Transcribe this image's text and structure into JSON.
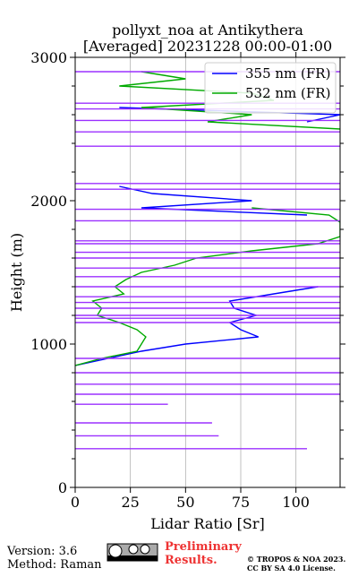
{
  "chart_data": {
    "type": "line",
    "title": [
      "pollyxt_noa at Antikythera",
      "[Averaged] 20231228 00:00-01:00"
    ],
    "xlabel": "Lidar Ratio [Sr]",
    "ylabel": "Height (m)",
    "xlim": [
      0,
      120
    ],
    "ylim": [
      0,
      3000
    ],
    "xticks": [
      0,
      25,
      50,
      75,
      100
    ],
    "yticks": [
      0,
      1000,
      2000,
      3000
    ],
    "yminorticks": [
      200,
      400,
      600,
      800,
      1200,
      1400,
      1600,
      1800,
      2200,
      2400,
      2600,
      2800
    ],
    "grid": true,
    "legend": "upper right",
    "y": [
      850,
      900,
      950,
      1000,
      1050,
      1100,
      1150,
      1200,
      1250,
      1300,
      1350,
      1400,
      1450,
      1500,
      1550,
      1600,
      1650,
      1700,
      1750,
      1800,
      1850,
      1900,
      1950,
      2000,
      2050,
      2100,
      2150,
      2200,
      2250,
      2300,
      2350,
      2400,
      2450,
      2500,
      2550,
      2600,
      2650,
      2700,
      2750,
      2800,
      2850,
      2900,
      2950
    ],
    "series": [
      {
        "name": "355 nm (FR)",
        "color": "#0000ff",
        "values": [
          0,
          15,
          30,
          50,
          83,
          75,
          70,
          82,
          72,
          70,
          90,
          110,
          null,
          null,
          null,
          null,
          null,
          null,
          null,
          null,
          null,
          105,
          30,
          80,
          35,
          20,
          null,
          null,
          null,
          null,
          null,
          null,
          null,
          null,
          105,
          120,
          20,
          null,
          null,
          null,
          null,
          null,
          null
        ]
      },
      {
        "name": "532 nm (FR)",
        "color": "#00aa00",
        "values": [
          0,
          12,
          28,
          30,
          32,
          28,
          20,
          10,
          12,
          8,
          22,
          18,
          23,
          30,
          45,
          55,
          80,
          110,
          120,
          120,
          120,
          115,
          80,
          null,
          null,
          null,
          null,
          null,
          null,
          0,
          null,
          null,
          null,
          120,
          60,
          80,
          30,
          90,
          80,
          20,
          50,
          30,
          null
        ]
      },
      {
        "color": "#9b30ff",
        "y": [
          270,
          360,
          450,
          580,
          650,
          720,
          800,
          900,
          1150,
          1180,
          1200,
          1250,
          1290,
          1330,
          1400,
          1470,
          1530,
          1600,
          1640,
          1700,
          1720,
          1860,
          1940,
          2080,
          2120,
          2380,
          2480,
          2560,
          2640,
          2680,
          2900
        ],
        "values": [
          105,
          65,
          62,
          42,
          120,
          120,
          120,
          120,
          120,
          120,
          120,
          120,
          120,
          120,
          120,
          120,
          120,
          120,
          120,
          120,
          120,
          120,
          120,
          120,
          120,
          120,
          120,
          120,
          120,
          120,
          120
        ]
      }
    ]
  },
  "footer": {
    "version": "Version: 3.6",
    "method": "Method: Raman",
    "status": "Preliminary Results.",
    "license": "© TROPOS & NOA 2023. CC BY SA 4.0 License."
  }
}
